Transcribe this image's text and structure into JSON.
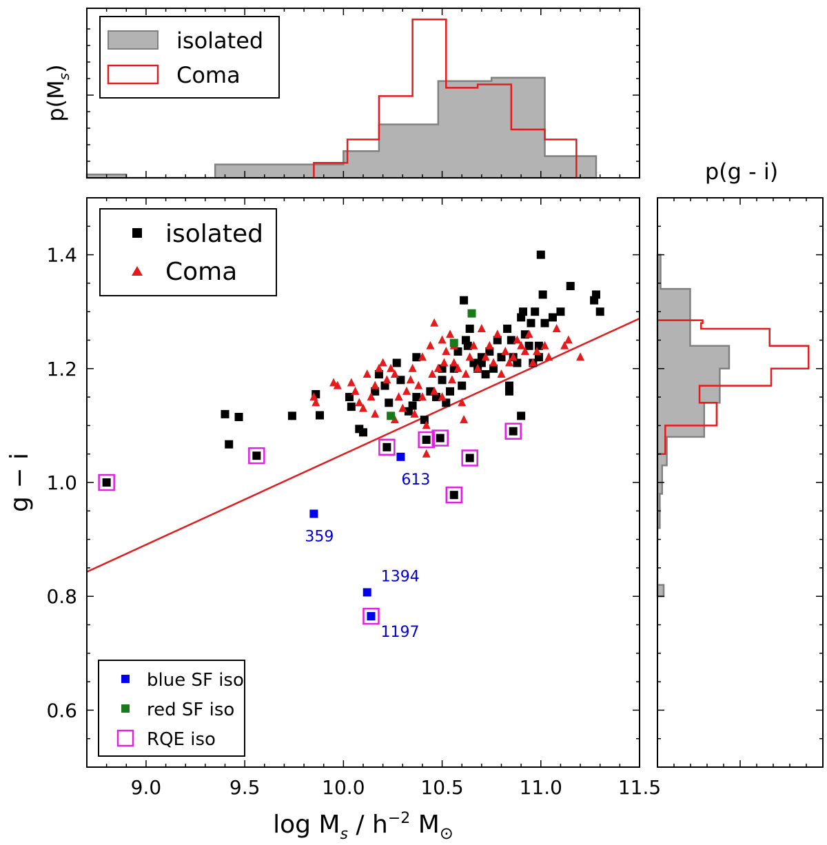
{
  "chart_data": [
    {
      "id": "top-histogram",
      "type": "histogram",
      "ylabel": "p(M",
      "ylabel_sub": "s",
      "ylabel_close": ")",
      "xlim": [
        8.7,
        11.5
      ],
      "ylim": [
        0,
        1.0
      ],
      "series": [
        {
          "name": "isolated",
          "color": "#b3b3b3",
          "edge": "#808080",
          "bins": [
            [
              8.7,
              8.9,
              0.02
            ],
            [
              8.9,
              9.35,
              0.0
            ],
            [
              9.35,
              10.0,
              0.08
            ],
            [
              10.0,
              10.18,
              0.16
            ],
            [
              10.18,
              10.48,
              0.32
            ],
            [
              10.48,
              10.75,
              0.58
            ],
            [
              10.75,
              11.02,
              0.6
            ],
            [
              11.02,
              11.28,
              0.13
            ]
          ]
        },
        {
          "name": "Coma",
          "color": "#e41a1c",
          "bins": [
            [
              9.85,
              10.02,
              0.09
            ],
            [
              10.02,
              10.18,
              0.23
            ],
            [
              10.18,
              10.35,
              0.49
            ],
            [
              10.35,
              10.52,
              0.95
            ],
            [
              10.52,
              10.68,
              0.54
            ],
            [
              10.68,
              10.85,
              0.56
            ],
            [
              10.85,
              11.02,
              0.29
            ],
            [
              11.02,
              11.18,
              0.23
            ]
          ]
        }
      ],
      "legend": [
        {
          "label": "isolated",
          "kind": "patch-grey"
        },
        {
          "label": "Coma",
          "kind": "patch-red"
        }
      ]
    },
    {
      "id": "scatter",
      "type": "scatter",
      "xlabel_parts": [
        "log M",
        "s",
        " / h",
        "−2",
        " M",
        "⊙"
      ],
      "ylabel": "g − i",
      "xlim": [
        8.7,
        11.5
      ],
      "ylim": [
        0.5,
        1.5
      ],
      "xticks": [
        "9.0",
        "9.5",
        "10.0",
        "10.5",
        "11.0",
        "11.5"
      ],
      "yticks": [
        "0.6",
        "0.8",
        "1.0",
        "1.2",
        "1.4"
      ],
      "line": {
        "x1": 8.7,
        "y1": 0.843,
        "x2": 11.5,
        "y2": 1.288,
        "color": "#e41a1c"
      },
      "legend_main": [
        {
          "label": "isolated",
          "marker": "square-black"
        },
        {
          "label": "Coma",
          "marker": "triangle-red"
        }
      ],
      "legend_sub": [
        {
          "label": "blue SF iso",
          "marker": "square-blue"
        },
        {
          "label": "red SF iso",
          "marker": "square-green"
        },
        {
          "label": "RQE iso",
          "marker": "square-open-magenta"
        }
      ],
      "isolated": [
        [
          9.4,
          1.12
        ],
        [
          9.42,
          1.067
        ],
        [
          9.47,
          1.115
        ],
        [
          9.74,
          1.117
        ],
        [
          9.86,
          1.155
        ],
        [
          9.88,
          1.118
        ],
        [
          10.03,
          1.15
        ],
        [
          10.04,
          1.133
        ],
        [
          10.08,
          1.094
        ],
        [
          10.1,
          1.088
        ],
        [
          10.16,
          1.16
        ],
        [
          10.18,
          1.19
        ],
        [
          10.21,
          1.17
        ],
        [
          10.23,
          1.14
        ],
        [
          10.27,
          1.21
        ],
        [
          10.29,
          1.18
        ],
        [
          10.33,
          1.125
        ],
        [
          10.35,
          1.135
        ],
        [
          10.37,
          1.15
        ],
        [
          10.41,
          1.11
        ],
        [
          10.44,
          1.16
        ],
        [
          10.47,
          1.15
        ],
        [
          10.5,
          1.18
        ],
        [
          10.52,
          1.14
        ],
        [
          10.54,
          1.16
        ],
        [
          10.56,
          1.2
        ],
        [
          10.58,
          1.23
        ],
        [
          10.6,
          1.17
        ],
        [
          10.61,
          1.32
        ],
        [
          10.63,
          1.24
        ],
        [
          10.64,
          1.27
        ],
        [
          10.66,
          1.21
        ],
        [
          10.68,
          1.2
        ],
        [
          10.7,
          1.22
        ],
        [
          10.72,
          1.19
        ],
        [
          10.74,
          1.23
        ],
        [
          10.76,
          1.2
        ],
        [
          10.78,
          1.25
        ],
        [
          10.8,
          1.22
        ],
        [
          10.83,
          1.27
        ],
        [
          10.84,
          1.17
        ],
        [
          10.84,
          1.16
        ],
        [
          10.85,
          1.25
        ],
        [
          10.88,
          1.21
        ],
        [
          10.9,
          1.29
        ],
        [
          10.91,
          1.3
        ],
        [
          10.92,
          1.26
        ],
        [
          10.94,
          1.24
        ],
        [
          10.95,
          1.28
        ],
        [
          10.97,
          1.3
        ],
        [
          10.99,
          1.24
        ],
        [
          11.0,
          1.4
        ],
        [
          11.01,
          1.33
        ],
        [
          11.02,
          1.28
        ],
        [
          11.06,
          1.29
        ],
        [
          11.1,
          1.3
        ],
        [
          11.15,
          1.345
        ],
        [
          11.27,
          1.32
        ],
        [
          11.28,
          1.33
        ],
        [
          11.3,
          1.3
        ],
        [
          10.9,
          1.117
        ],
        [
          10.86,
          1.22
        ],
        [
          10.7,
          1.21
        ],
        [
          10.62,
          1.25
        ],
        [
          10.5,
          1.2
        ],
        [
          10.37,
          1.22
        ],
        [
          10.96,
          1.21
        ],
        [
          10.99,
          1.22
        ]
      ],
      "coma": [
        [
          9.85,
          1.15
        ],
        [
          9.86,
          1.14
        ],
        [
          9.95,
          1.175
        ],
        [
          9.97,
          1.17
        ],
        [
          10.04,
          1.175
        ],
        [
          10.06,
          1.16
        ],
        [
          10.08,
          1.14
        ],
        [
          10.1,
          1.13
        ],
        [
          10.12,
          1.19
        ],
        [
          10.14,
          1.15
        ],
        [
          10.16,
          1.17
        ],
        [
          10.18,
          1.2
        ],
        [
          10.2,
          1.21
        ],
        [
          10.22,
          1.18
        ],
        [
          10.24,
          1.2
        ],
        [
          10.26,
          1.19
        ],
        [
          10.28,
          1.15
        ],
        [
          10.3,
          1.13
        ],
        [
          10.32,
          1.16
        ],
        [
          10.34,
          1.18
        ],
        [
          10.36,
          1.12
        ],
        [
          10.38,
          1.17
        ],
        [
          10.4,
          1.22
        ],
        [
          10.42,
          1.1
        ],
        [
          10.42,
          1.05
        ],
        [
          10.44,
          1.24
        ],
        [
          10.45,
          1.19
        ],
        [
          10.46,
          1.28
        ],
        [
          10.48,
          1.2
        ],
        [
          10.5,
          1.15
        ],
        [
          10.51,
          1.21
        ],
        [
          10.52,
          1.23
        ],
        [
          10.54,
          1.26
        ],
        [
          10.55,
          1.18
        ],
        [
          10.56,
          1.24
        ],
        [
          10.58,
          1.2
        ],
        [
          10.6,
          1.14
        ],
        [
          10.61,
          1.11
        ],
        [
          10.62,
          1.19
        ],
        [
          10.64,
          1.22
        ],
        [
          10.66,
          1.24
        ],
        [
          10.68,
          1.2
        ],
        [
          10.7,
          1.27
        ],
        [
          10.72,
          1.22
        ],
        [
          10.74,
          1.24
        ],
        [
          10.76,
          1.21
        ],
        [
          10.78,
          1.26
        ],
        [
          10.8,
          1.19
        ],
        [
          10.82,
          1.23
        ],
        [
          10.84,
          1.21
        ],
        [
          10.86,
          1.22
        ],
        [
          10.88,
          1.25
        ],
        [
          10.9,
          1.24
        ],
        [
          10.92,
          1.23
        ],
        [
          10.94,
          1.26
        ],
        [
          10.96,
          1.21
        ],
        [
          10.98,
          1.23
        ],
        [
          11.02,
          1.24
        ],
        [
          11.04,
          1.22
        ],
        [
          11.08,
          1.27
        ],
        [
          11.12,
          1.24
        ],
        [
          11.14,
          1.25
        ],
        [
          11.2,
          1.22
        ],
        [
          10.16,
          1.12
        ],
        [
          10.26,
          1.11
        ],
        [
          10.4,
          1.15
        ],
        [
          10.46,
          1.16
        ],
        [
          10.5,
          1.25
        ],
        [
          10.56,
          1.21
        ],
        [
          10.35,
          1.2
        ]
      ],
      "blue_sf": [
        [
          9.85,
          0.945
        ],
        [
          10.12,
          0.807
        ],
        [
          10.14,
          0.765
        ],
        [
          10.29,
          1.045
        ]
      ],
      "red_sf": [
        [
          10.24,
          1.117
        ],
        [
          10.65,
          1.297
        ],
        [
          10.56,
          1.245
        ]
      ],
      "rqe": [
        [
          8.8,
          1.0
        ],
        [
          9.56,
          1.047
        ],
        [
          10.14,
          0.765
        ],
        [
          10.22,
          1.062
        ],
        [
          10.42,
          1.075
        ],
        [
          10.49,
          1.078
        ],
        [
          10.56,
          0.978
        ],
        [
          10.64,
          1.043
        ],
        [
          10.86,
          1.09
        ]
      ],
      "annotations": [
        {
          "text": "613",
          "x": 10.29,
          "y": 1.045,
          "anchor": "below"
        },
        {
          "text": "359",
          "x": 9.85,
          "y": 0.945,
          "anchor": "below"
        },
        {
          "text": "1394",
          "x": 10.12,
          "y": 0.807,
          "anchor": "upper-right"
        },
        {
          "text": "1197",
          "x": 10.14,
          "y": 0.765,
          "anchor": "lower-right"
        }
      ]
    },
    {
      "id": "right-histogram",
      "type": "histogram",
      "orientation": "horizontal",
      "title": "p(g - i)",
      "ylim": [
        0.5,
        1.5
      ],
      "xlim": [
        0,
        1.0
      ],
      "series": [
        {
          "name": "isolated",
          "color": "#b3b3b3",
          "edge": "#808080",
          "bins": [
            [
              0.8,
              0.82,
              0.04
            ],
            [
              0.82,
              0.92,
              0.0
            ],
            [
              0.92,
              0.98,
              0.015
            ],
            [
              0.98,
              1.03,
              0.03
            ],
            [
              1.03,
              1.08,
              0.06
            ],
            [
              1.08,
              1.14,
              0.3
            ],
            [
              1.14,
              1.2,
              0.4
            ],
            [
              1.2,
              1.24,
              0.46
            ],
            [
              1.24,
              1.34,
              0.21
            ],
            [
              1.34,
              1.4,
              0.02
            ]
          ]
        },
        {
          "name": "Coma",
          "color": "#e41a1c",
          "bins": [
            [
              1.05,
              1.1,
              0.05
            ],
            [
              1.1,
              1.14,
              0.38
            ],
            [
              1.14,
              1.17,
              0.27
            ],
            [
              1.17,
              1.2,
              0.73
            ],
            [
              1.2,
              1.24,
              0.97
            ],
            [
              1.24,
              1.27,
              0.72
            ],
            [
              1.27,
              1.28,
              0.28
            ],
            [
              1.28,
              1.285,
              0.29
            ]
          ]
        }
      ]
    }
  ]
}
